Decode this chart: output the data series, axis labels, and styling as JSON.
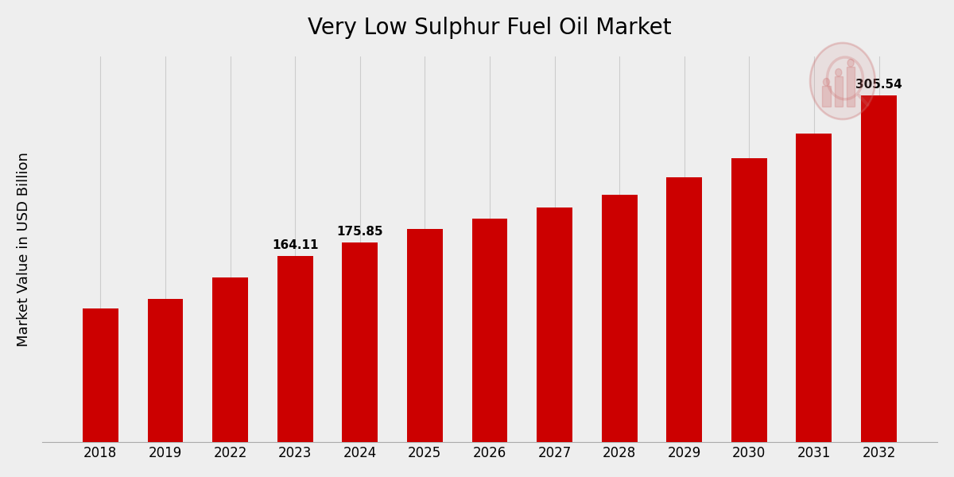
{
  "title": "Very Low Sulphur Fuel Oil Market",
  "ylabel": "Market Value in USD Billion",
  "background_color": "#eeeeee",
  "bar_color": "#cc0000",
  "categories": [
    "2018",
    "2019",
    "2022",
    "2023",
    "2024",
    "2025",
    "2026",
    "2027",
    "2028",
    "2029",
    "2030",
    "2031",
    "2032"
  ],
  "values": [
    118.0,
    126.0,
    145.0,
    164.11,
    175.85,
    188.0,
    197.0,
    207.0,
    218.0,
    233.0,
    250.0,
    272.0,
    305.54
  ],
  "labeled_bars": {
    "2023": "164.11",
    "2024": "175.85",
    "2032": "305.54"
  },
  "ylim": [
    0,
    340
  ],
  "title_fontsize": 20,
  "label_fontsize": 11,
  "tick_fontsize": 12,
  "ylabel_fontsize": 13,
  "grid_color": "#cccccc",
  "spine_color": "#aaaaaa"
}
